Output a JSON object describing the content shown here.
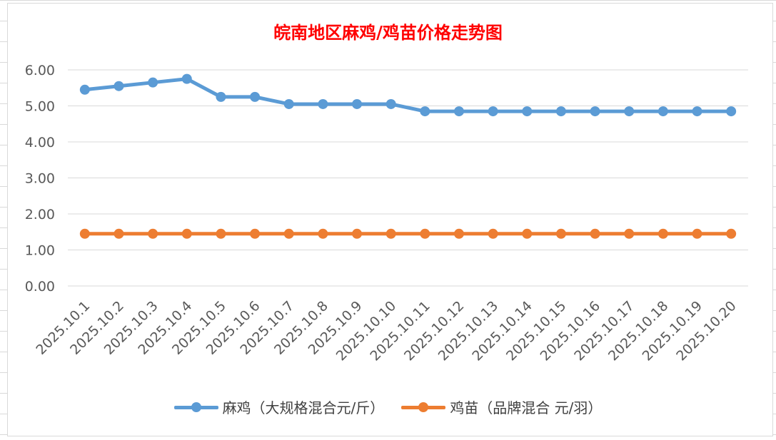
{
  "chart_data": {
    "type": "line",
    "title": "皖南地区麻鸡/鸡苗价格走势图",
    "categories": [
      "2025.10.1",
      "2025.10.2",
      "2025.10.3",
      "2025.10.4",
      "2025.10.5",
      "2025.10.6",
      "2025.10.7",
      "2025.10.8",
      "2025.10.9",
      "2025.10.10",
      "2025.10.11",
      "2025.10.12",
      "2025.10.13",
      "2025.10.14",
      "2025.10.15",
      "2025.10.16",
      "2025.10.17",
      "2025.10.18",
      "2025.10.19",
      "2025.10.20"
    ],
    "series": [
      {
        "name": "麻鸡（大规格混合元/斤）",
        "color": "#5b9bd5",
        "values": [
          5.45,
          5.55,
          5.65,
          5.75,
          5.25,
          5.25,
          5.05,
          5.05,
          5.05,
          5.05,
          4.85,
          4.85,
          4.85,
          4.85,
          4.85,
          4.85,
          4.85,
          4.85,
          4.85,
          4.85
        ]
      },
      {
        "name": "鸡苗（品牌混合 元/羽）",
        "color": "#ed7d31",
        "values": [
          1.45,
          1.45,
          1.45,
          1.45,
          1.45,
          1.45,
          1.45,
          1.45,
          1.45,
          1.45,
          1.45,
          1.45,
          1.45,
          1.45,
          1.45,
          1.45,
          1.45,
          1.45,
          1.45,
          1.45
        ]
      }
    ],
    "yticks": [
      "0.00",
      "1.00",
      "2.00",
      "3.00",
      "4.00",
      "5.00",
      "6.00"
    ],
    "ylim": [
      0,
      6
    ],
    "grid": true,
    "legend_position": "bottom"
  }
}
